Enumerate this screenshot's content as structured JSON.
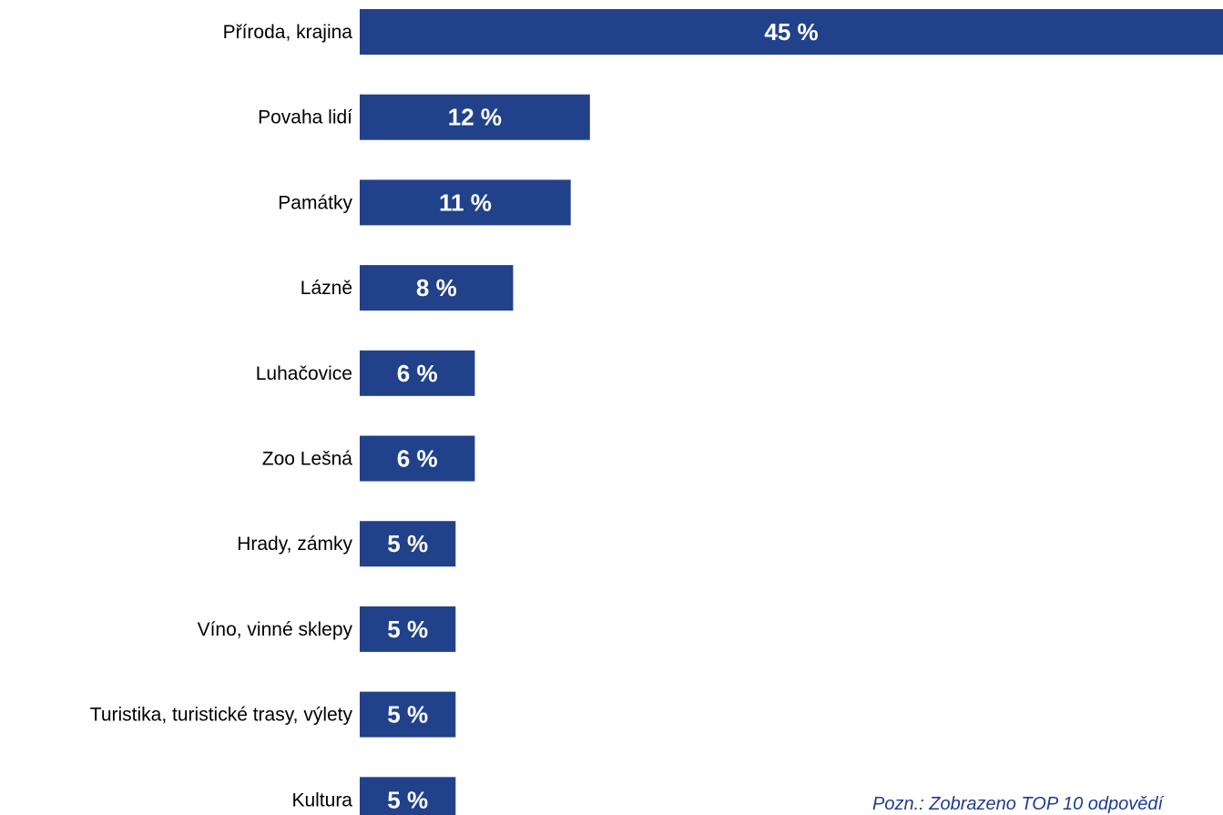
{
  "chart_data": {
    "type": "bar",
    "orientation": "horizontal",
    "categories": [
      "Příroda, krajina",
      "Povaha lidí",
      "Památky",
      "Lázně",
      "Luhačovice",
      "Zoo Lešná",
      "Hrady, zámky",
      "Víno, vinné sklepy",
      "Turistika, turistické trasy, výlety",
      "Kultura"
    ],
    "values": [
      45,
      12,
      11,
      8,
      6,
      6,
      5,
      5,
      5,
      5
    ],
    "value_labels": [
      "45 %",
      "12 %",
      "11 %",
      "8 %",
      "6 %",
      "6 %",
      "5 %",
      "5 %",
      "5 %",
      "5 %"
    ],
    "bar_color": "#21428a",
    "value_label_color": "#ffffff",
    "title": "",
    "xlabel": "",
    "ylabel": "",
    "xlim": [
      0,
      45
    ],
    "grid": false,
    "legend": "none"
  },
  "note": {
    "text": "Pozn.: Zobrazeno TOP 10 odpovědí"
  }
}
